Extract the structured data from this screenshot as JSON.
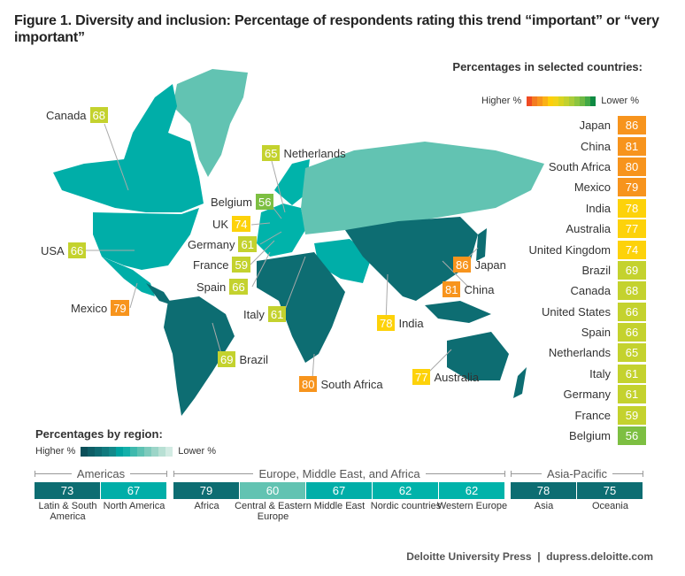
{
  "title": "Figure 1. Diversity and inclusion: Percentage of respondents rating this trend “important” or “very important”",
  "chart_data": {
    "type": "table",
    "title": "Figure 1. Diversity and inclusion: Percentage of respondents rating this trend “important” or “very important”",
    "country_legend": {
      "title": "Percentages in selected countries:",
      "higher_label": "Higher %",
      "lower_label": "Lower %",
      "colors": [
        "#ef4b23",
        "#f47b20",
        "#f7941d",
        "#fbb116",
        "#fdcf0a",
        "#f1d318",
        "#d7d420",
        "#c2d12e",
        "#a9cc39",
        "#8cc540",
        "#6db843",
        "#43a946",
        "#0f8a43"
      ]
    },
    "countries": [
      {
        "name": "Japan",
        "value": 86,
        "color": "#f7941d"
      },
      {
        "name": "China",
        "value": 81,
        "color": "#f7941d"
      },
      {
        "name": "South Africa",
        "value": 80,
        "color": "#f7941d"
      },
      {
        "name": "Mexico",
        "value": 79,
        "color": "#f7941d"
      },
      {
        "name": "India",
        "value": 78,
        "color": "#fdd20a"
      },
      {
        "name": "Australia",
        "value": 77,
        "color": "#fdd20a"
      },
      {
        "name": "United Kingdom",
        "value": 74,
        "color": "#fdd20a"
      },
      {
        "name": "Brazil",
        "value": 69,
        "color": "#c4d22e"
      },
      {
        "name": "Canada",
        "value": 68,
        "color": "#c4d22e"
      },
      {
        "name": "United States",
        "value": 66,
        "color": "#c4d22e"
      },
      {
        "name": "Spain",
        "value": 66,
        "color": "#c4d22e"
      },
      {
        "name": "Netherlands",
        "value": 65,
        "color": "#c4d22e"
      },
      {
        "name": "Italy",
        "value": 61,
        "color": "#c4d22e"
      },
      {
        "name": "Germany",
        "value": 61,
        "color": "#c4d22e"
      },
      {
        "name": "France",
        "value": 59,
        "color": "#c4d22e"
      },
      {
        "name": "Belgium",
        "value": 56,
        "color": "#7dbf42"
      }
    ],
    "map_labels": [
      {
        "name": "Canada",
        "value": 68,
        "color": "#c4d22e"
      },
      {
        "name": "Netherlands",
        "value": 65,
        "color": "#c4d22e"
      },
      {
        "name": "Belgium",
        "value": 56,
        "color": "#7dbf42"
      },
      {
        "name": "UK",
        "value": 74,
        "color": "#fdd20a"
      },
      {
        "name": "USA",
        "value": 66,
        "color": "#c4d22e"
      },
      {
        "name": "Germany",
        "value": 61,
        "color": "#c4d22e"
      },
      {
        "name": "France",
        "value": 59,
        "color": "#c4d22e"
      },
      {
        "name": "Spain",
        "value": 66,
        "color": "#c4d22e"
      },
      {
        "name": "Japan",
        "value": 86,
        "color": "#f7941d"
      },
      {
        "name": "China",
        "value": 81,
        "color": "#f7941d"
      },
      {
        "name": "Mexico",
        "value": 79,
        "color": "#f7941d"
      },
      {
        "name": "Italy",
        "value": 61,
        "color": "#c4d22e"
      },
      {
        "name": "India",
        "value": 78,
        "color": "#fdd20a"
      },
      {
        "name": "Brazil",
        "value": 69,
        "color": "#c4d22e"
      },
      {
        "name": "South Africa",
        "value": 80,
        "color": "#f7941d"
      },
      {
        "name": "Australia",
        "value": 77,
        "color": "#fdd20a"
      }
    ],
    "region_legend": {
      "title": "Percentages by region:",
      "higher_label": "Higher %",
      "lower_label": "Lower %",
      "colors": [
        "#0b4f59",
        "#0e5e66",
        "#0f6b72",
        "#117a7e",
        "#13898a",
        "#00a3a0",
        "#13b0aa",
        "#3fb9ad",
        "#5ec2b3",
        "#7ecbbd",
        "#9cd5c8",
        "#b8e0d4",
        "#d2ebe3"
      ]
    },
    "region_groups": [
      {
        "name": "Americas",
        "regions": [
          {
            "name": "Latin & South America",
            "value": 73,
            "color": "#0d6d72"
          },
          {
            "name": "North America",
            "value": 67,
            "color": "#00aea8"
          }
        ]
      },
      {
        "name": "Europe, Middle East, and Africa",
        "regions": [
          {
            "name": "Africa",
            "value": 79,
            "color": "#0d6d72"
          },
          {
            "name": "Central & Eastern Europe",
            "value": 60,
            "color": "#62c3b2"
          },
          {
            "name": "Middle East",
            "value": 67,
            "color": "#00aea8"
          },
          {
            "name": "Nordic countries",
            "value": 62,
            "color": "#00b3aa"
          },
          {
            "name": "Western Europe",
            "value": 62,
            "color": "#00b3aa"
          }
        ]
      },
      {
        "name": "Asia-Pacific",
        "regions": [
          {
            "name": "Asia",
            "value": 78,
            "color": "#0d6d72"
          },
          {
            "name": "Oceania",
            "value": 75,
            "color": "#0d6d72"
          }
        ]
      }
    ]
  },
  "footer": {
    "publisher": "Deloitte University Press",
    "separator": "|",
    "url": "dupress.deloitte.com"
  }
}
